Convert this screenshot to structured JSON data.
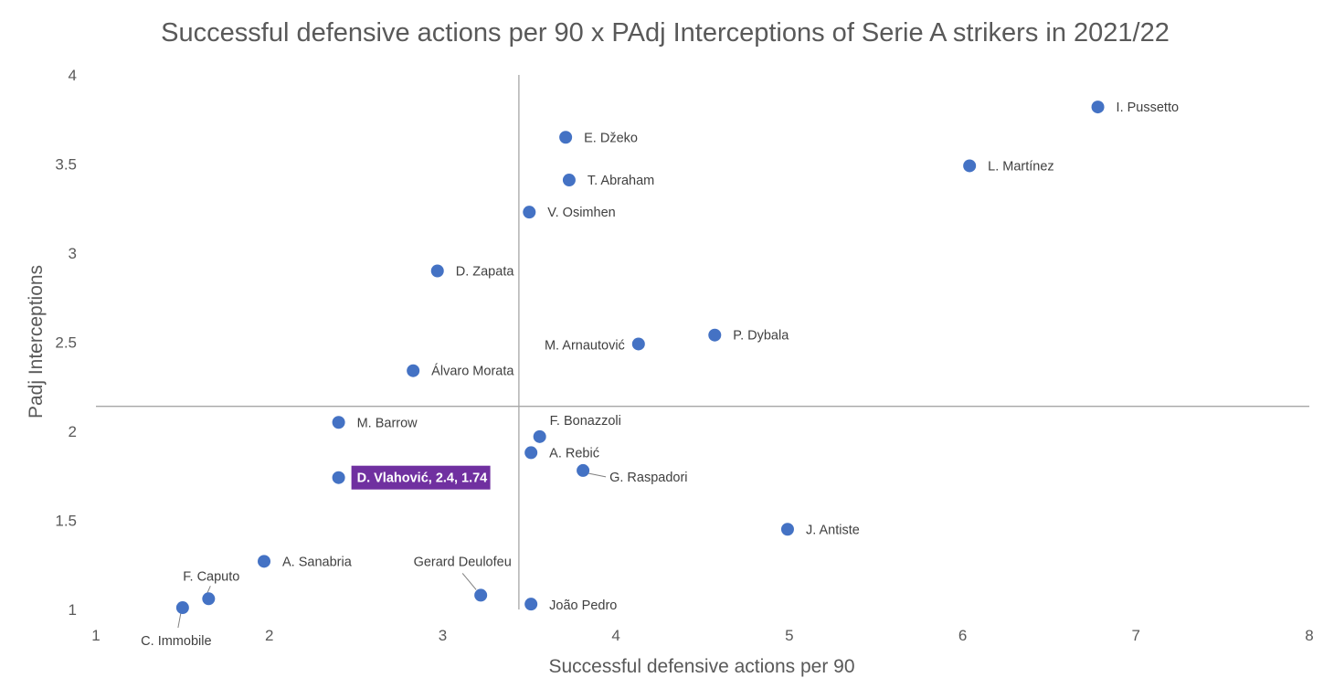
{
  "chart_data": {
    "type": "scatter",
    "title": "Successful defensive actions per 90 x PAdj Interceptions of Serie A strikers in 2021/22",
    "xlabel": "Successful defensive actions per 90",
    "ylabel": "Padj Interceptions",
    "xlim": [
      1,
      8
    ],
    "ylim": [
      1,
      4
    ],
    "x_ticks": [
      "1",
      "2",
      "3",
      "4",
      "5",
      "6",
      "7",
      "8"
    ],
    "y_ticks": [
      "1",
      "1.5",
      "2",
      "2.5",
      "3",
      "3.5",
      "4"
    ],
    "grid": false,
    "legend": "none",
    "marker_color": "#4472C4",
    "highlight_color": "#7030A0",
    "reference_lines": {
      "x": 3.44,
      "y": 2.14
    },
    "points": [
      {
        "name": "I. Pussetto",
        "x": 6.78,
        "y": 3.82
      },
      {
        "name": "L. Martínez",
        "x": 6.04,
        "y": 3.49
      },
      {
        "name": "E. Džeko",
        "x": 3.71,
        "y": 3.65
      },
      {
        "name": "T. Abraham",
        "x": 3.73,
        "y": 3.41
      },
      {
        "name": "V. Osimhen",
        "x": 3.5,
        "y": 3.23
      },
      {
        "name": "D. Zapata",
        "x": 2.97,
        "y": 2.9
      },
      {
        "name": "P. Dybala",
        "x": 4.57,
        "y": 2.54
      },
      {
        "name": "M. Arnautović",
        "x": 4.13,
        "y": 2.49
      },
      {
        "name": "Álvaro Morata",
        "x": 2.83,
        "y": 2.34
      },
      {
        "name": "M. Barrow",
        "x": 2.4,
        "y": 2.05
      },
      {
        "name": "F. Bonazzoli",
        "x": 3.56,
        "y": 1.97
      },
      {
        "name": "A. Rebić",
        "x": 3.51,
        "y": 1.88
      },
      {
        "name": "G. Raspadori",
        "x": 3.81,
        "y": 1.78
      },
      {
        "name": "D. Vlahović, 2.4, 1.74",
        "x": 2.4,
        "y": 1.74,
        "highlight": true
      },
      {
        "name": "J. Antiste",
        "x": 4.99,
        "y": 1.45
      },
      {
        "name": "A. Sanabria",
        "x": 1.97,
        "y": 1.27
      },
      {
        "name": "Gerard Deulofeu",
        "x": 3.22,
        "y": 1.08
      },
      {
        "name": "F. Caputo",
        "x": 1.65,
        "y": 1.06
      },
      {
        "name": "João Pedro",
        "x": 3.51,
        "y": 1.03
      },
      {
        "name": "C. Immobile",
        "x": 1.5,
        "y": 1.01
      }
    ]
  }
}
